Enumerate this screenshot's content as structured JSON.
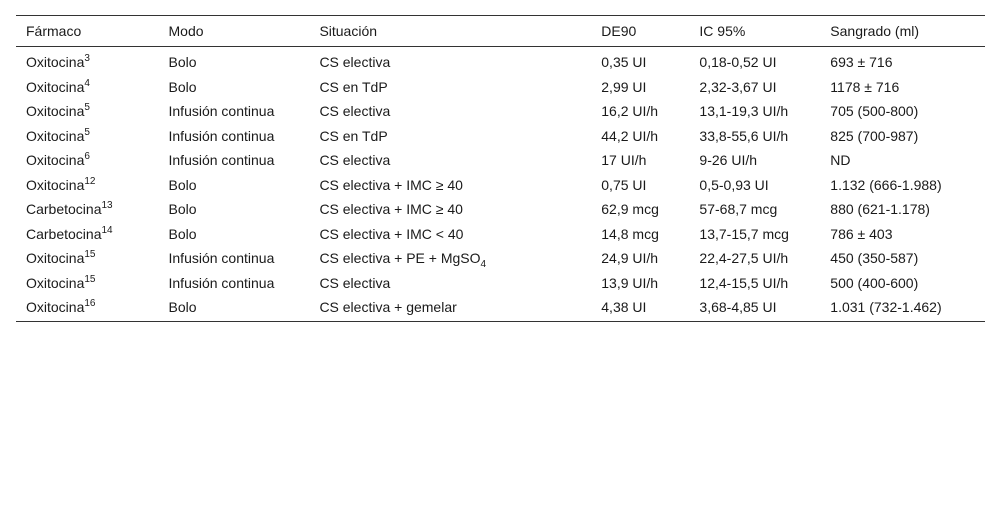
{
  "headers": {
    "farmaco": "Fármaco",
    "modo": "Modo",
    "situacion": "Situación",
    "de90": "DE90",
    "ic95": "IC 95%",
    "sangrado": "Sangrado (ml)"
  },
  "rows": [
    {
      "farmaco": "Oxitocina",
      "ref": "3",
      "modo": "Bolo",
      "situacion": "CS electiva",
      "sub": "",
      "de90": "0,35 UI",
      "ic95": "0,18-0,52 UI",
      "sangrado": "693 ± 716"
    },
    {
      "farmaco": "Oxitocina",
      "ref": "4",
      "modo": "Bolo",
      "situacion": "CS en TdP",
      "sub": "",
      "de90": "2,99 UI",
      "ic95": "2,32-3,67 UI",
      "sangrado": "1178 ± 716"
    },
    {
      "farmaco": "Oxitocina",
      "ref": "5",
      "modo": "Infusión continua",
      "situacion": "CS electiva",
      "sub": "",
      "de90": "16,2 UI/h",
      "ic95": "13,1-19,3 UI/h",
      "sangrado": "705 (500-800)"
    },
    {
      "farmaco": "Oxitocina",
      "ref": "5",
      "modo": "Infusión continua",
      "situacion": "CS en TdP",
      "sub": "",
      "de90": "44,2 UI/h",
      "ic95": "33,8-55,6 UI/h",
      "sangrado": "825 (700-987)"
    },
    {
      "farmaco": "Oxitocina",
      "ref": "6",
      "modo": "Infusión continua",
      "situacion": "CS electiva",
      "sub": "",
      "de90": "17 UI/h",
      "ic95": "9-26 UI/h",
      "sangrado": "ND"
    },
    {
      "farmaco": "Oxitocina",
      "ref": "12",
      "modo": "Bolo",
      "situacion": "CS electiva + IMC ≥ 40",
      "sub": "",
      "de90": "0,75 UI",
      "ic95": "0,5-0,93 UI",
      "sangrado": "1.132 (666-1.988)"
    },
    {
      "farmaco": "Carbetocina",
      "ref": "13",
      "modo": "Bolo",
      "situacion": "CS electiva + IMC ≥ 40",
      "sub": "",
      "de90": "62,9 mcg",
      "ic95": "57-68,7 mcg",
      "sangrado": "880 (621-1.178)"
    },
    {
      "farmaco": "Carbetocina",
      "ref": "14",
      "modo": "Bolo",
      "situacion": "CS electiva + IMC < 40",
      "sub": "",
      "de90": "14,8 mcg",
      "ic95": "13,7-15,7 mcg",
      "sangrado": "786 ± 403"
    },
    {
      "farmaco": "Oxitocina",
      "ref": "15",
      "modo": "Infusión continua",
      "situacion": "CS electiva + PE + MgSO",
      "sub": "4",
      "de90": "24,9 UI/h",
      "ic95": "22,4-27,5 UI/h",
      "sangrado": "450 (350-587)"
    },
    {
      "farmaco": "Oxitocina",
      "ref": "15",
      "modo": "Infusión continua",
      "situacion": "CS electiva",
      "sub": "",
      "de90": "13,9 UI/h",
      "ic95": "12,4-15,5 UI/h",
      "sangrado": "500 (400-600)"
    },
    {
      "farmaco": "Oxitocina",
      "ref": "16",
      "modo": "Bolo",
      "situacion": "CS electiva + gemelar",
      "sub": "",
      "de90": "4,38 UI",
      "ic95": "3,68-4,85 UI",
      "sangrado": "1.031 (732-1.462)"
    }
  ]
}
